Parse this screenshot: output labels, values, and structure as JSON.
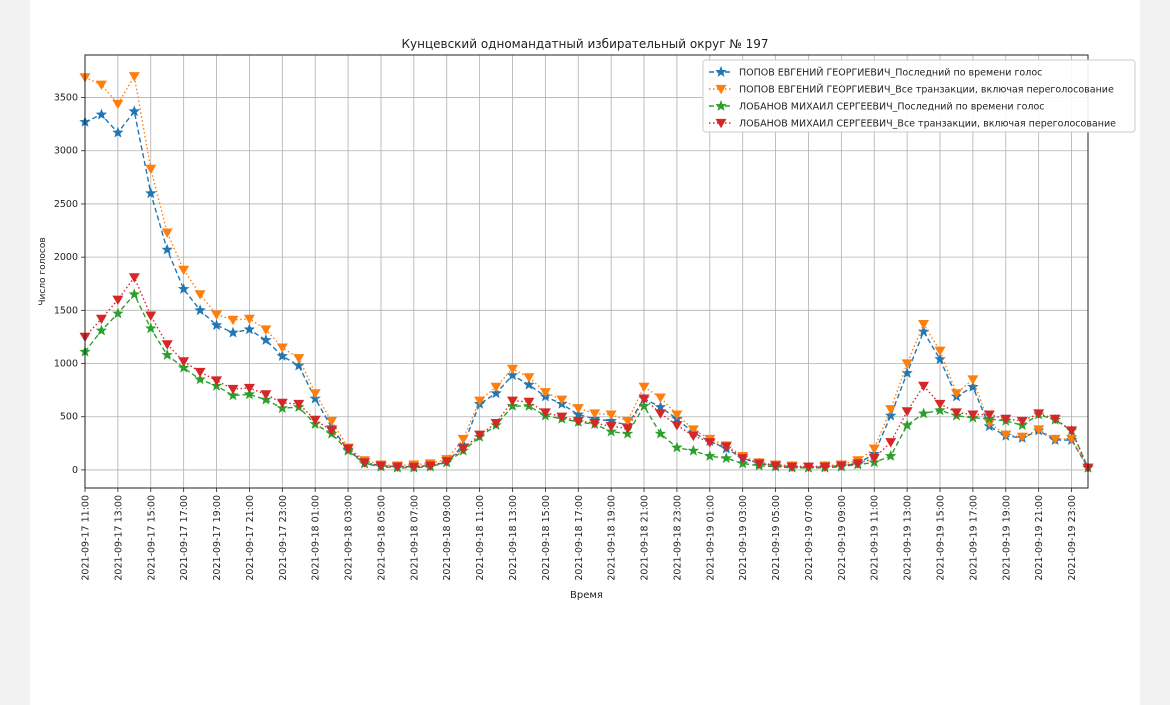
{
  "chart_data": {
    "type": "line",
    "title": "Кунцевский одномандатный избирательный округ № 197",
    "xlabel": "Время",
    "ylabel": "Число голосов",
    "ylim": [
      -170,
      3900
    ],
    "yticks": [
      0,
      500,
      1000,
      1500,
      2000,
      2500,
      3000,
      3500
    ],
    "xticks": [
      "2021-09-17 11:00",
      "2021-09-17 13:00",
      "2021-09-17 15:00",
      "2021-09-17 17:00",
      "2021-09-17 19:00",
      "2021-09-17 21:00",
      "2021-09-17 23:00",
      "2021-09-18 01:00",
      "2021-09-18 03:00",
      "2021-09-18 05:00",
      "2021-09-18 07:00",
      "2021-09-18 09:00",
      "2021-09-18 11:00",
      "2021-09-18 13:00",
      "2021-09-18 15:00",
      "2021-09-18 17:00",
      "2021-09-18 19:00",
      "2021-09-18 21:00",
      "2021-09-18 23:00",
      "2021-09-19 01:00",
      "2021-09-19 03:00",
      "2021-09-19 05:00",
      "2021-09-19 07:00",
      "2021-09-19 09:00",
      "2021-09-19 11:00",
      "2021-09-19 13:00",
      "2021-09-19 15:00",
      "2021-09-19 17:00",
      "2021-09-19 19:00",
      "2021-09-19 21:00",
      "2021-09-19 23:00"
    ],
    "x_start": "2021-09-17 11:00",
    "x_step_hours": 1,
    "grid": true,
    "legend_position": "top-right",
    "series": [
      {
        "name": "ПОПОВ ЕВГЕНИЙ ГЕОРГИЕВИЧ_Последний по времени голос",
        "color": "#1f77b4",
        "marker": "star",
        "linestyle": "dashed",
        "values": [
          3270,
          3340,
          3170,
          3370,
          2600,
          2070,
          1700,
          1500,
          1360,
          1290,
          1320,
          1220,
          1070,
          980,
          670,
          400,
          190,
          60,
          40,
          30,
          30,
          40,
          70,
          230,
          620,
          720,
          890,
          800,
          690,
          620,
          520,
          480,
          460,
          420,
          670,
          590,
          480,
          350,
          270,
          200,
          110,
          60,
          40,
          30,
          20,
          30,
          40,
          60,
          150,
          510,
          910,
          1300,
          1040,
          690,
          780,
          410,
          320,
          300,
          370,
          280,
          280,
          20
        ]
      },
      {
        "name": "ПОПОВ ЕВГЕНИЙ ГЕОРГИЕВИЧ_Все транзакции, включая переголосование",
        "color": "#ff7f0e",
        "marker": "triangle-down",
        "linestyle": "dotted",
        "values": [
          3690,
          3620,
          3440,
          3700,
          2830,
          2230,
          1880,
          1650,
          1460,
          1410,
          1420,
          1320,
          1150,
          1050,
          720,
          460,
          210,
          90,
          50,
          40,
          50,
          60,
          100,
          290,
          650,
          780,
          950,
          870,
          730,
          660,
          580,
          530,
          520,
          460,
          780,
          680,
          520,
          380,
          290,
          230,
          130,
          70,
          50,
          40,
          30,
          40,
          50,
          90,
          200,
          570,
          1000,
          1370,
          1120,
          720,
          850,
          440,
          330,
          310,
          380,
          290,
          290,
          20
        ]
      },
      {
        "name": "ЛОБАНОВ МИХАИЛ СЕРГЕЕВИЧ_Последний по времени голос",
        "color": "#2ca02c",
        "marker": "star",
        "linestyle": "dashed",
        "values": [
          1110,
          1310,
          1470,
          1650,
          1330,
          1080,
          960,
          850,
          790,
          700,
          710,
          660,
          580,
          590,
          430,
          340,
          180,
          60,
          30,
          20,
          20,
          30,
          70,
          180,
          310,
          420,
          600,
          600,
          510,
          480,
          450,
          430,
          360,
          340,
          600,
          340,
          210,
          180,
          130,
          110,
          60,
          40,
          30,
          20,
          20,
          20,
          30,
          50,
          70,
          130,
          420,
          530,
          560,
          510,
          490,
          480,
          460,
          420,
          520,
          470,
          370,
          20
        ]
      },
      {
        "name": "ЛОБАНОВ МИХАИЛ СЕРГЕЕВИЧ_Все транзакции, включая переголосование",
        "color": "#d62728",
        "marker": "triangle-down",
        "linestyle": "dotted",
        "values": [
          1250,
          1420,
          1600,
          1810,
          1450,
          1180,
          1020,
          920,
          840,
          760,
          770,
          710,
          630,
          620,
          470,
          370,
          200,
          70,
          40,
          30,
          30,
          40,
          80,
          200,
          330,
          440,
          650,
          640,
          540,
          500,
          460,
          440,
          410,
          390,
          670,
          530,
          420,
          320,
          260,
          220,
          110,
          60,
          40,
          30,
          30,
          30,
          40,
          60,
          110,
          260,
          550,
          790,
          620,
          540,
          520,
          520,
          480,
          460,
          530,
          480,
          370,
          20
        ]
      }
    ]
  }
}
